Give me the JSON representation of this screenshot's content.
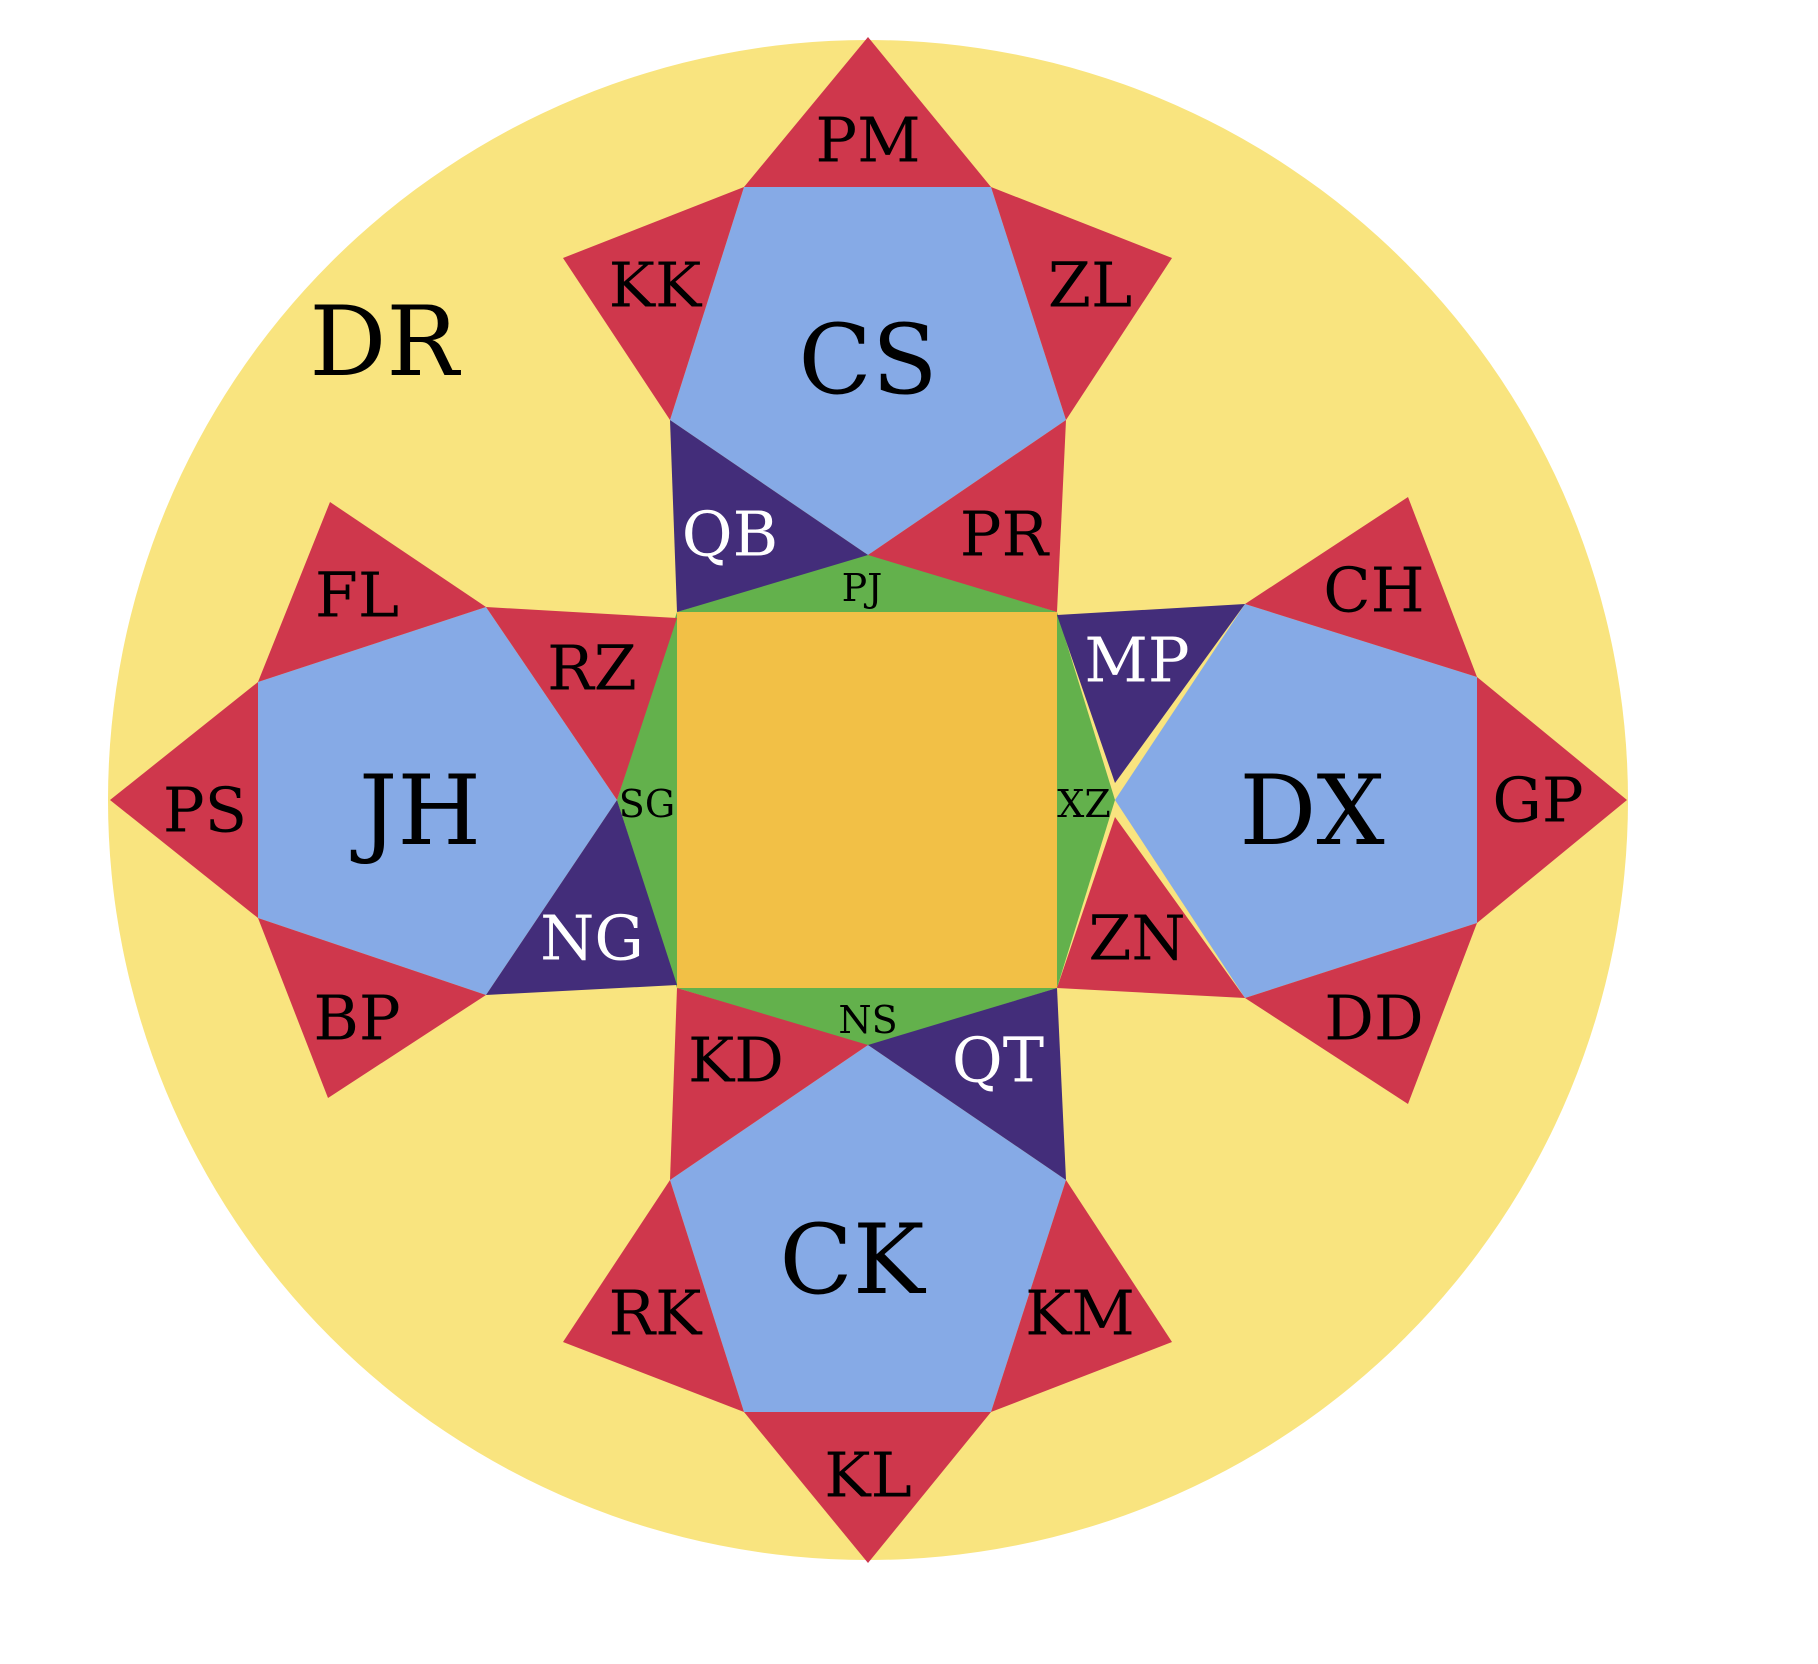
{
  "colors": {
    "background": "#ffffff",
    "disc": "#f9e47f",
    "center_square": "#f2c046",
    "green_ring": "#63b14c",
    "pentagon": "#86aae6",
    "red_triangle": "#cf374c",
    "purple_triangle": "#432d7a"
  },
  "labels": {
    "disc": "DR",
    "pent_top": "CS",
    "pent_bottom": "CK",
    "pent_left": "JH",
    "pent_right": "DX",
    "green_top": "PJ",
    "green_bottom": "NS",
    "green_left": "SG",
    "green_right": "XZ",
    "top_tip": "PM",
    "top_left": "KK",
    "top_right": "ZL",
    "top_in_left": "QB",
    "top_in_right": "PR",
    "right_tip": "GP",
    "right_top": "CH",
    "right_bottom": "DD",
    "right_in_top": "MP",
    "right_in_bottom": "ZN",
    "bottom_tip": "KL",
    "bottom_left": "RK",
    "bottom_right": "KM",
    "bottom_in_left": "KD",
    "bottom_in_right": "QT",
    "left_tip": "PS",
    "left_top": "FL",
    "left_bottom": "BP",
    "left_in_top": "RZ",
    "left_in_bottom": "NG"
  }
}
